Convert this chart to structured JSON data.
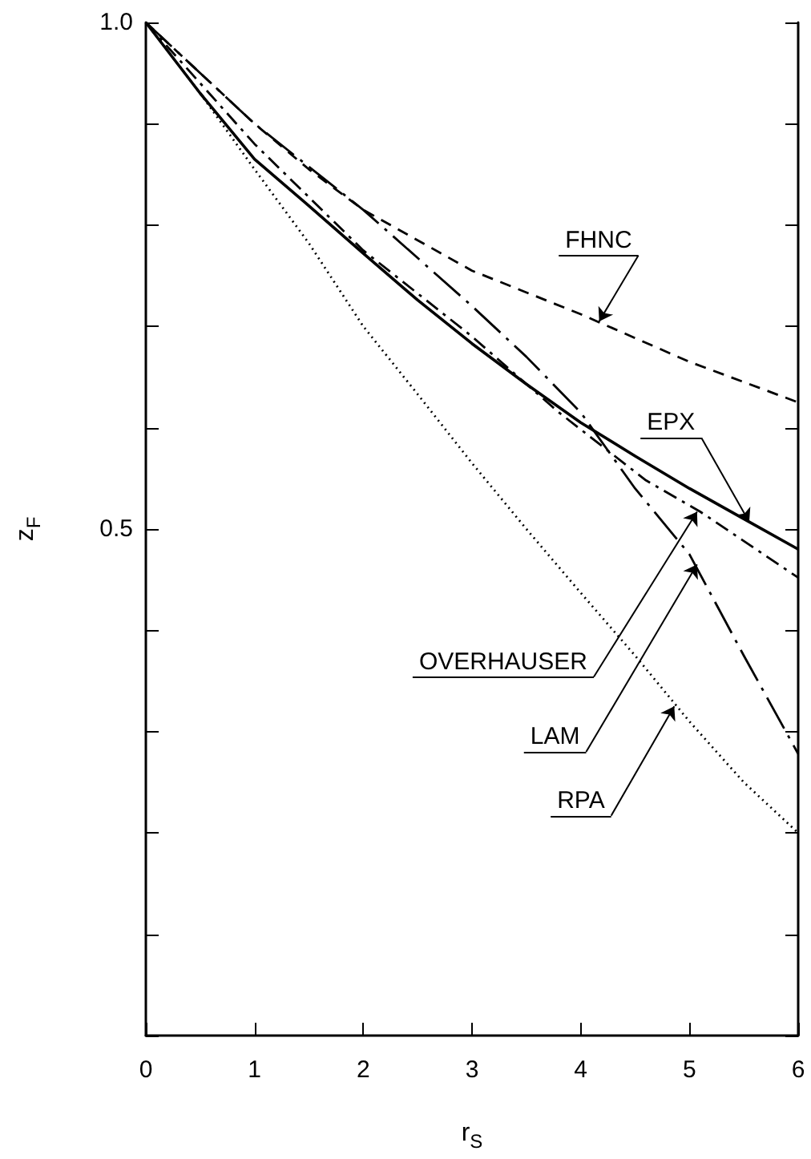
{
  "chart_data": {
    "type": "line",
    "xlabel": "r$_{S}$",
    "ylabel": "z$_{F}$",
    "xlim": [
      0,
      6
    ],
    "xticks": [
      0,
      1,
      2,
      3,
      4,
      5,
      6
    ],
    "ylim": [
      0,
      1
    ],
    "yticks": [
      {
        "value": 0,
        "label": null
      },
      {
        "value": 0.1,
        "label": null
      },
      {
        "value": 0.2,
        "label": null
      },
      {
        "value": 0.3,
        "label": null
      },
      {
        "value": 0.4,
        "label": null
      },
      {
        "value": 0.5,
        "label": "0.5"
      },
      {
        "value": 0.6,
        "label": null
      },
      {
        "value": 0.7,
        "label": null
      },
      {
        "value": 0.8,
        "label": null
      },
      {
        "value": 0.9,
        "label": null
      },
      {
        "value": 1.0,
        "label": "1.0"
      }
    ],
    "grid": false,
    "marker": "none",
    "series": [
      {
        "color": "#000000",
        "line_style": "dashed",
        "x": [
          0,
          0.5,
          1,
          1.5,
          2,
          3,
          4,
          5,
          6
        ],
        "values": [
          1,
          0.95,
          0.9,
          0.855,
          0.815,
          0.755,
          0.712,
          0.665,
          0.625
        ]
      },
      {
        "color": "#000000",
        "line_style": "solid",
        "x": [
          0,
          0.5,
          1,
          1.5,
          2,
          2.5,
          3,
          3.5,
          4,
          4.5,
          5,
          5.5,
          6
        ],
        "values": [
          1,
          0.93,
          0.865,
          0.819,
          0.772,
          0.726,
          0.683,
          0.643,
          0.605,
          0.572,
          0.54,
          0.51,
          0.48
        ]
      },
      {
        "color": "#000000",
        "line_style": "dashdot",
        "x": [
          0,
          1,
          2,
          3,
          3.8,
          4.6,
          5.1,
          6
        ],
        "values": [
          1,
          0.88,
          0.775,
          0.69,
          0.615,
          0.548,
          0.517,
          0.452
        ]
      },
      {
        "color": "#000000",
        "line_style": "longdashdot",
        "x": [
          0,
          0.5,
          1,
          2,
          3,
          3.5,
          4,
          4.5,
          5,
          5.5,
          6
        ],
        "values": [
          1,
          0.95,
          0.9,
          0.815,
          0.72,
          0.67,
          0.615,
          0.54,
          0.475,
          0.375,
          0.278
        ]
      },
      {
        "color": "#000000",
        "line_style": "dotted",
        "x": [
          0,
          0.5,
          1,
          1.5,
          2,
          2.5,
          3,
          3.5,
          4,
          4.5,
          5,
          5.5,
          6
        ],
        "values": [
          1,
          0.93,
          0.855,
          0.782,
          0.7,
          0.633,
          0.565,
          0.5,
          0.437,
          0.375,
          0.31,
          0.25,
          0.2
        ]
      }
    ],
    "annotations": [
      {
        "text": "FHNC",
        "x": 4.17,
        "y": 0.705
      },
      {
        "text": "EPX",
        "x": 5.55,
        "y": 0.507
      },
      {
        "text": "OVERHAUSER",
        "x": 5.07,
        "y": 0.517
      },
      {
        "text": "LAM",
        "x": 5.07,
        "y": 0.465
      },
      {
        "text": "RPA",
        "x": 4.86,
        "y": 0.325
      }
    ]
  }
}
